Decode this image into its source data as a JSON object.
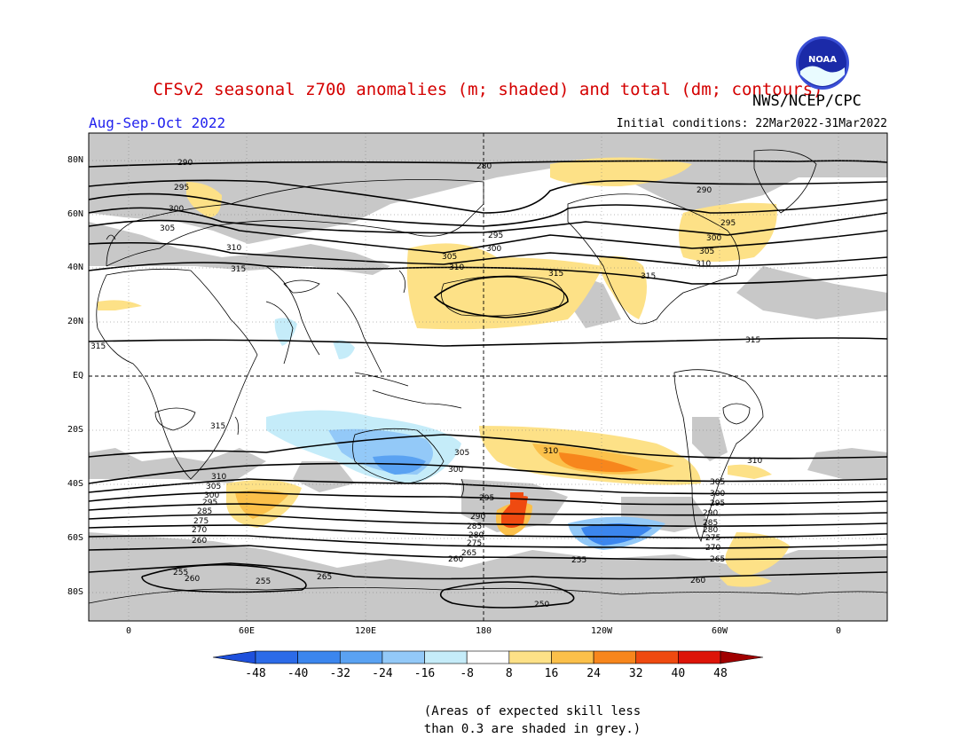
{
  "header": {
    "title": "CFSv2 seasonal z700 anomalies (m; shaded) and total (dm; contours)",
    "organization": "NWS/NCEP/CPC",
    "season": "Aug-Sep-Oct 2022",
    "initial_conditions": "Initial conditions: 22Mar2022-31Mar2022",
    "logo_text": "NOAA"
  },
  "axes": {
    "lat_labels": [
      "80N",
      "60N",
      "40N",
      "20N",
      "EQ",
      "20S",
      "40S",
      "60S",
      "80S"
    ],
    "lon_labels": [
      "0",
      "60E",
      "120E",
      "180",
      "120W",
      "60W",
      "0"
    ]
  },
  "contour_labels": {
    "c290": "290",
    "c295": "295",
    "c300": "300",
    "c305": "305",
    "c310": "310",
    "c315": "315",
    "c285": "285",
    "c280": "280",
    "c275": "275",
    "c270": "270",
    "c265": "265",
    "c260": "260",
    "c255": "255",
    "c250": "250"
  },
  "colorbar": {
    "ticks": [
      "-48",
      "-40",
      "-32",
      "-24",
      "-16",
      "-8",
      "8",
      "16",
      "24",
      "32",
      "40",
      "48"
    ],
    "colors": [
      "#1e50dc",
      "#2c6be8",
      "#3b86ee",
      "#5aa2f2",
      "#93c9f8",
      "#c5ecf9",
      "#ffffff",
      "#fde187",
      "#fbc04a",
      "#f7861c",
      "#ef4a10",
      "#dd1408",
      "#a00000"
    ]
  },
  "note": {
    "line1": "(Areas of expected skill less",
    "line2": "than 0.3 are shaded in grey.)"
  }
}
